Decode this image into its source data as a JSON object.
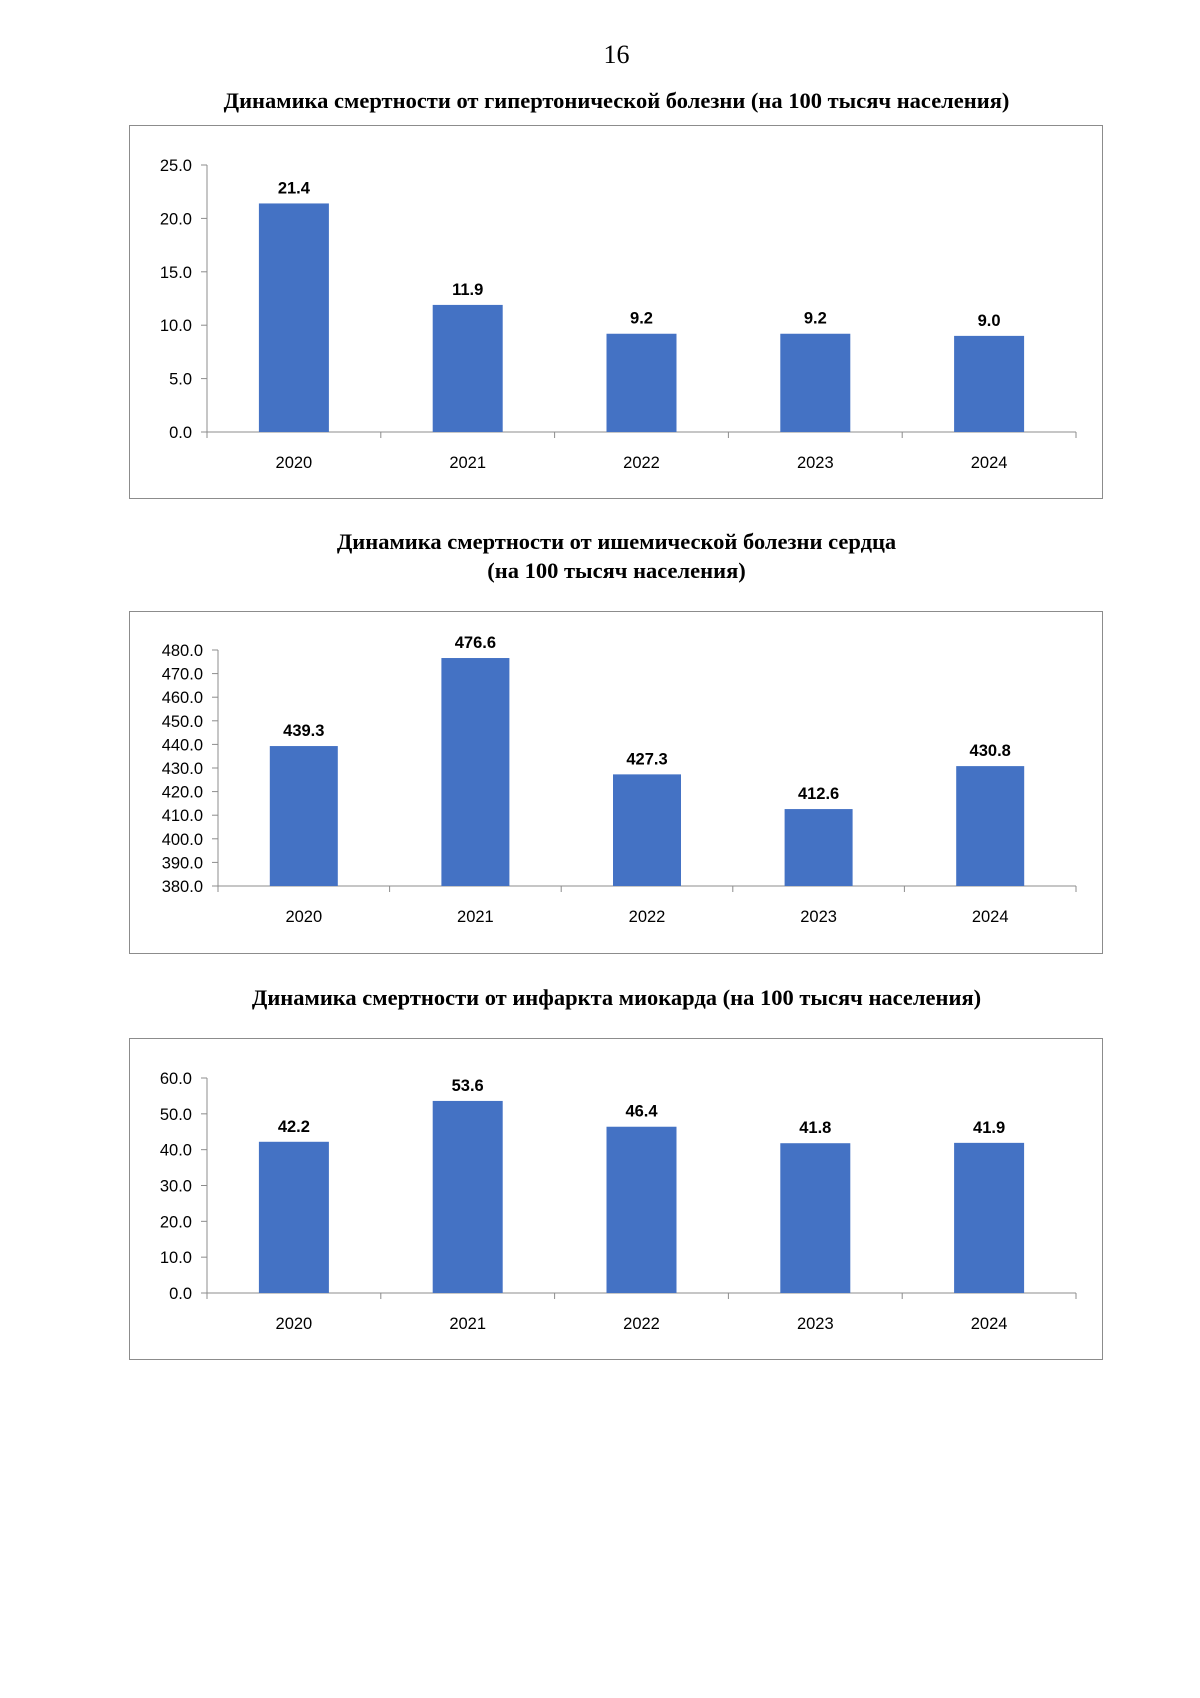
{
  "page": {
    "number": "16"
  },
  "colors": {
    "bar": "#4472c4",
    "axis": "#8c8c8c",
    "text": "#000000"
  },
  "chart_data": [
    {
      "type": "bar",
      "title_lines": [
        "Динамика смертности от гипертонической болезни (на 100 тысяч населения)"
      ],
      "categories": [
        "2020",
        "2021",
        "2022",
        "2023",
        "2024"
      ],
      "values": [
        21.4,
        11.9,
        9.2,
        9.2,
        9.0
      ],
      "labels": [
        "21.4",
        "11.9",
        "9.2",
        "9.2",
        "9.0"
      ],
      "ylim": [
        0,
        25
      ],
      "yticks": [
        0,
        5,
        10,
        15,
        20,
        25
      ],
      "ytick_labels": [
        "0.0",
        "5.0",
        "10.0",
        "15.0",
        "20.0",
        "25.0"
      ],
      "xlabel": "",
      "ylabel": "",
      "grid": false
    },
    {
      "type": "bar",
      "title_lines": [
        "Динамика смертности от ишемической болезни сердца",
        "(на 100 тысяч населения)"
      ],
      "categories": [
        "2020",
        "2021",
        "2022",
        "2023",
        "2024"
      ],
      "values": [
        439.3,
        476.6,
        427.3,
        412.6,
        430.8
      ],
      "labels": [
        "439.3",
        "476.6",
        "427.3",
        "412.6",
        "430.8"
      ],
      "ylim": [
        380,
        480
      ],
      "yticks": [
        380,
        390,
        400,
        410,
        420,
        430,
        440,
        450,
        460,
        470,
        480
      ],
      "ytick_labels": [
        "380.0",
        "390.0",
        "400.0",
        "410.0",
        "420.0",
        "430.0",
        "440.0",
        "450.0",
        "460.0",
        "470.0",
        "480.0"
      ],
      "xlabel": "",
      "ylabel": "",
      "grid": false
    },
    {
      "type": "bar",
      "title_lines": [
        "Динамика смертности от инфаркта миокарда (на 100 тысяч населения)"
      ],
      "categories": [
        "2020",
        "2021",
        "2022",
        "2023",
        "2024"
      ],
      "values": [
        42.2,
        53.6,
        46.4,
        41.8,
        41.9
      ],
      "labels": [
        "42.2",
        "53.6",
        "46.4",
        "41.8",
        "41.9"
      ],
      "ylim": [
        0,
        60
      ],
      "yticks": [
        0,
        10,
        20,
        30,
        40,
        50,
        60
      ],
      "ytick_labels": [
        "0.0",
        "10.0",
        "20.0",
        "30.0",
        "40.0",
        "50.0",
        "60.0"
      ],
      "xlabel": "",
      "ylabel": "",
      "grid": false
    }
  ]
}
